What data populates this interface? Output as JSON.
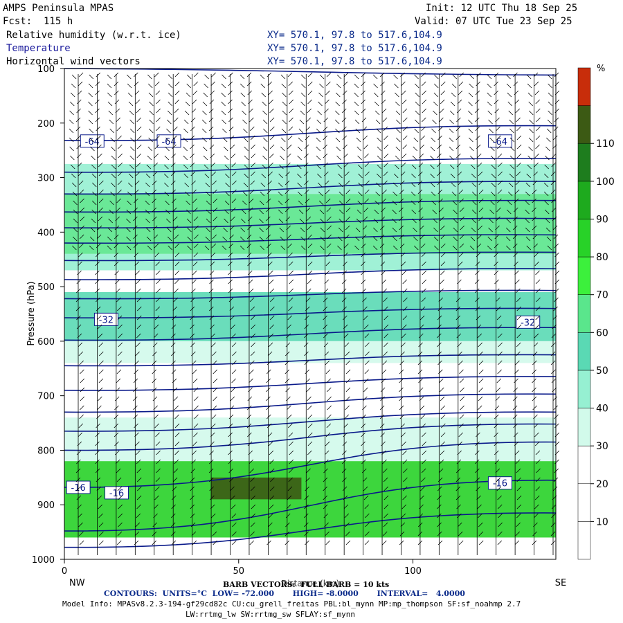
{
  "header": {
    "model_title": "AMPS Peninsula MPAS",
    "forecast": "Fcst:  115 h",
    "init": "Init: 12 UTC Thu 18 Sep 25",
    "valid": "Valid: 07 UTC Tue 23 Sep 25",
    "fields": [
      {
        "name": "Relative humidity (w.r.t. ice)",
        "xy": "XY= 570.1, 97.8 to 517.6,104.9",
        "color": "#000000"
      },
      {
        "name": "Temperature",
        "xy": "XY= 570.1, 97.8 to 517.6,104.9",
        "color": "#1a1a9c"
      },
      {
        "name": "Horizontal wind vectors",
        "xy": "XY= 570.1, 97.8 to 517.6,104.9",
        "color": "#000000"
      }
    ]
  },
  "footer": {
    "barb": "BARB VECTORS:  FULL BARB = 10 kts",
    "contours": "CONTOURS:  UNITS=°C  LOW= -72.000       HIGH= -8.0000       INTERVAL=   4.0000",
    "model_info": "Model Info: MPASv8.2.3-194-gf29cd82c CU:cu_grell_freitas PBL:bl_mynn MP:mp_thompson SF:sf_noahmp 2.7",
    "model_info2": "LW:rrtmg_lw SW:rrtmg_sw SFLAY:sf_mynn"
  },
  "chart_data": {
    "type": "heatmap",
    "title": "",
    "xlabel": "Distance (km)",
    "ylabel": "Pressure (hPa)",
    "xlim": [
      0,
      141
    ],
    "ylim": [
      1000,
      100
    ],
    "x_ticks": [
      0,
      50,
      100
    ],
    "y_ticks": [
      100,
      200,
      300,
      400,
      500,
      600,
      700,
      800,
      900,
      1000
    ],
    "x_end_labels": [
      "NW",
      "SE"
    ],
    "colorbar": {
      "unit": "%",
      "ticks": [
        10,
        20,
        30,
        40,
        50,
        60,
        70,
        80,
        90,
        100,
        110
      ],
      "levels": [
        0,
        10,
        20,
        30,
        40,
        50,
        60,
        70,
        80,
        90,
        100,
        110,
        120
      ],
      "colors": [
        "#ffffff",
        "#ffffff",
        "#ffffff",
        "#d2faeb",
        "#96f0d2",
        "#5ad9b4",
        "#5ae68c",
        "#3cf03c",
        "#28d228",
        "#1eaa1e",
        "#1e7d1e",
        "#3c5a14",
        "#c82d0a"
      ]
    },
    "rh_bands": [
      {
        "p_top": 275,
        "p_bottom": 330,
        "rh": 45
      },
      {
        "p_top": 330,
        "p_bottom": 440,
        "rh": 68
      },
      {
        "p_top": 440,
        "p_bottom": 470,
        "rh": 40
      },
      {
        "p_top": 510,
        "p_bottom": 600,
        "rh": 52
      },
      {
        "p_top": 600,
        "p_bottom": 640,
        "rh": 38
      },
      {
        "p_top": 740,
        "p_bottom": 820,
        "rh": 38
      },
      {
        "p_top": 820,
        "p_bottom": 960,
        "rh": 85
      },
      {
        "p_top": 850,
        "p_bottom": 890,
        "rh": 115
      }
    ],
    "isotherms_label": "Temperature (°C)",
    "isotherm_labels": [
      {
        "text": "-64",
        "x": 8,
        "p": 233
      },
      {
        "text": "-64",
        "x": 30,
        "p": 233
      },
      {
        "text": "-64",
        "x": 125,
        "p": 233
      },
      {
        "text": "-32",
        "x": 12,
        "p": 560
      },
      {
        "text": "-32",
        "x": 133,
        "p": 565
      },
      {
        "text": "-16",
        "x": 4,
        "p": 868
      },
      {
        "text": "-16",
        "x": 15,
        "p": 878
      },
      {
        "text": "-16",
        "x": 125,
        "p": 860
      }
    ],
    "isotherm_levels_p_left": [
      100,
      232,
      290,
      330,
      363,
      392,
      420,
      452,
      487,
      522,
      557,
      598,
      645,
      690,
      730,
      765,
      800,
      868,
      948,
      978
    ],
    "isotherm_levels_p_right": [
      112,
      205,
      265,
      307,
      342,
      375,
      405,
      437,
      467,
      507,
      540,
      575,
      625,
      665,
      697,
      730,
      752,
      785,
      855,
      915
    ],
    "wind_barb_columns": 26
  }
}
